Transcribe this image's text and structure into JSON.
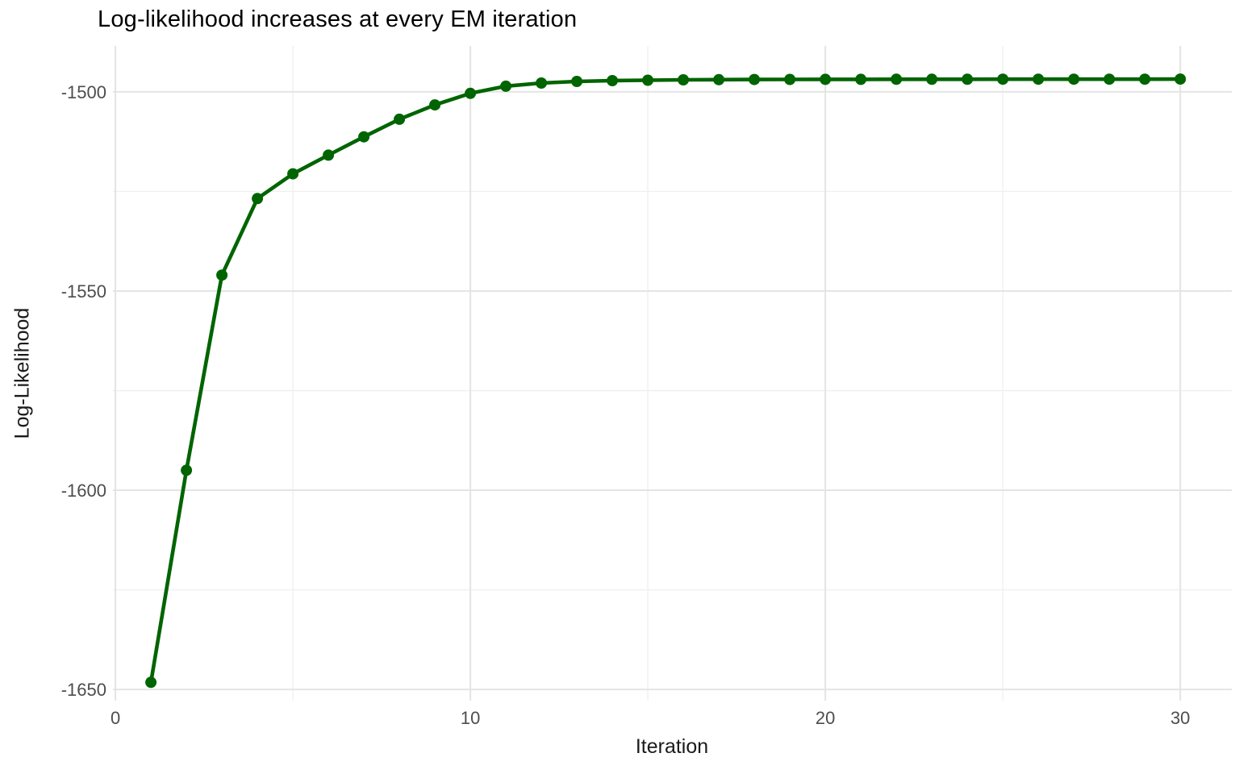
{
  "page": {
    "background": "#ffffff"
  },
  "chart_data": {
    "type": "line",
    "title": "Log-likelihood increases at every EM iteration",
    "xlabel": "Iteration",
    "ylabel": "Log-Likelihood",
    "legend": "none",
    "grid": "on",
    "marker": "point",
    "xlim": [
      -0.07,
      31.45
    ],
    "ylim": [
      -1652.8,
      -1488.5
    ],
    "x_major_ticks": [
      0,
      10,
      20,
      30
    ],
    "x_tick_labels": [
      "0",
      "10",
      "20",
      "30"
    ],
    "x_minor_ticks": [
      5,
      15,
      25
    ],
    "y_major_ticks": [
      -1500,
      -1550,
      -1600,
      -1650
    ],
    "y_tick_labels": [
      "-1500",
      "-1550",
      "-1600",
      "-1650"
    ],
    "y_minor_ticks": [
      -1525,
      -1575,
      -1625
    ],
    "series": [
      {
        "name": "log-likelihood",
        "color": "#006400",
        "x": [
          1,
          2,
          3,
          4,
          5,
          6,
          7,
          8,
          9,
          10,
          11,
          12,
          13,
          14,
          15,
          16,
          17,
          18,
          19,
          20,
          21,
          22,
          23,
          24,
          25,
          26,
          27,
          28,
          29,
          30
        ],
        "values": [
          -1648.2,
          -1595.0,
          -1546.0,
          -1526.8,
          -1520.6,
          -1515.9,
          -1511.3,
          -1506.9,
          -1503.3,
          -1500.4,
          -1498.6,
          -1497.8,
          -1497.4,
          -1497.2,
          -1497.1,
          -1497.0,
          -1496.95,
          -1496.92,
          -1496.9,
          -1496.88,
          -1496.87,
          -1496.86,
          -1496.85,
          -1496.85,
          -1496.84,
          -1496.84,
          -1496.83,
          -1496.83,
          -1496.83,
          -1496.82
        ]
      }
    ],
    "styles": {
      "grid_major_color": "#e4e4e4",
      "grid_minor_color": "#f0f0f0",
      "tick_label_color": "#4d4d4d",
      "line_width": 4.6,
      "point_radius": 7
    }
  }
}
